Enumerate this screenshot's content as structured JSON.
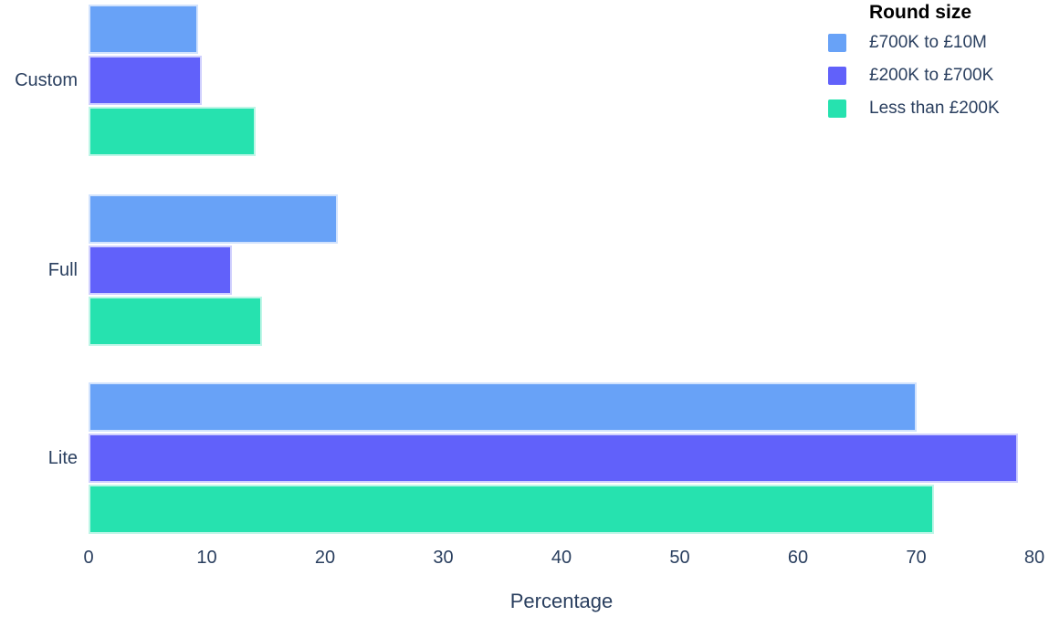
{
  "chart_data": {
    "type": "bar",
    "orientation": "horizontal",
    "categories": [
      "Custom",
      "Full",
      "Lite"
    ],
    "series": [
      {
        "name": "£700K to £10M",
        "color": "#68A2F7",
        "values": [
          9.3,
          21.1,
          70.0
        ]
      },
      {
        "name": "£200K to £700K",
        "color": "#6161FA",
        "values": [
          9.6,
          12.1,
          78.6
        ]
      },
      {
        "name": "Less than £200K",
        "color": "#26E2AF",
        "values": [
          14.1,
          14.7,
          71.5
        ]
      }
    ],
    "xlabel": "Percentage",
    "ylabel": "",
    "xlim": [
      0,
      80
    ],
    "xticks": [
      0,
      10,
      20,
      30,
      40,
      50,
      60,
      70,
      80
    ],
    "legend": {
      "title": "Round size",
      "position": "top-right"
    },
    "grid": false,
    "background": "#ffffff"
  },
  "colors": {
    "axis_text": "#2a3f5f",
    "legend_title_text": "#000000",
    "bar_border": "rgba(255,255,255,0.7)"
  }
}
